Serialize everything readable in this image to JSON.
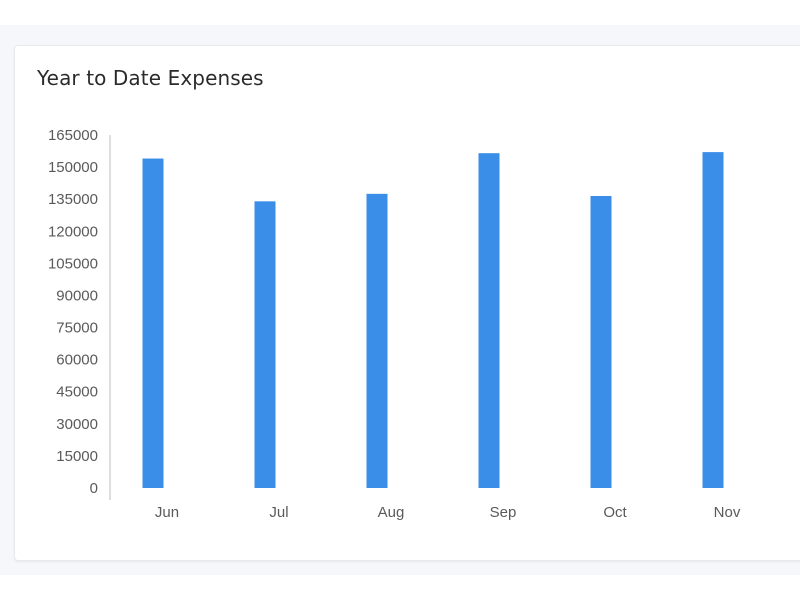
{
  "card": {
    "title": "Year to Date Expenses"
  },
  "colors": {
    "bar": "#3b8ee8",
    "axis": "#bcbcbc",
    "label": "#5a5a5a",
    "title": "#2b2b2b",
    "background": "#f5f7fa"
  },
  "chart_data": {
    "type": "bar",
    "title": "Year to Date Expenses",
    "xlabel": "",
    "ylabel": "",
    "categories": [
      "Jun",
      "Jul",
      "Aug",
      "Sep",
      "Oct",
      "Nov"
    ],
    "values": [
      154000,
      134000,
      137500,
      156500,
      136500,
      157000
    ],
    "ylim": [
      0,
      165000
    ],
    "yticks": [
      "0",
      "15000",
      "30000",
      "45000",
      "60000",
      "75000",
      "90000",
      "105000",
      "120000",
      "135000",
      "150000",
      "165000"
    ],
    "grid": false,
    "legend": "none"
  }
}
